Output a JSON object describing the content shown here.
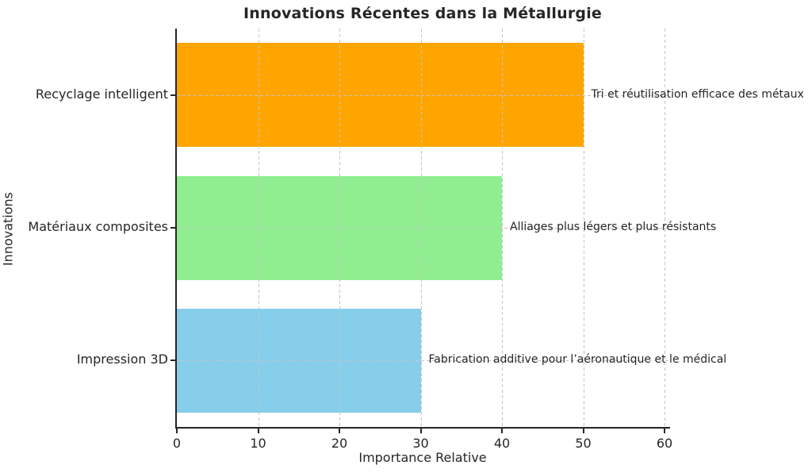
{
  "chart_data": {
    "type": "bar",
    "orientation": "horizontal",
    "title": "Innovations Récentes dans la Métallurgie",
    "xlabel": "Importance Relative",
    "ylabel": "Innovations",
    "categories": [
      "Recyclage intelligent",
      "Matériaux composites",
      "Impression 3D"
    ],
    "values": [
      50,
      40,
      30
    ],
    "bar_colors": [
      "#FFA500",
      "#90EE90",
      "#87CEEB"
    ],
    "annotations": [
      "Tri et réutilisation efficace des métaux",
      "Alliages plus légers et plus résistants",
      "Fabrication additive pour l’aéronautique et le médical"
    ],
    "xlim": [
      0,
      60
    ],
    "xticks": [
      0,
      10,
      20,
      30,
      40,
      50,
      60
    ],
    "grid": true,
    "grid_linestyle": "dashed",
    "legend_position": "none",
    "bar_height_fraction": 0.78
  }
}
